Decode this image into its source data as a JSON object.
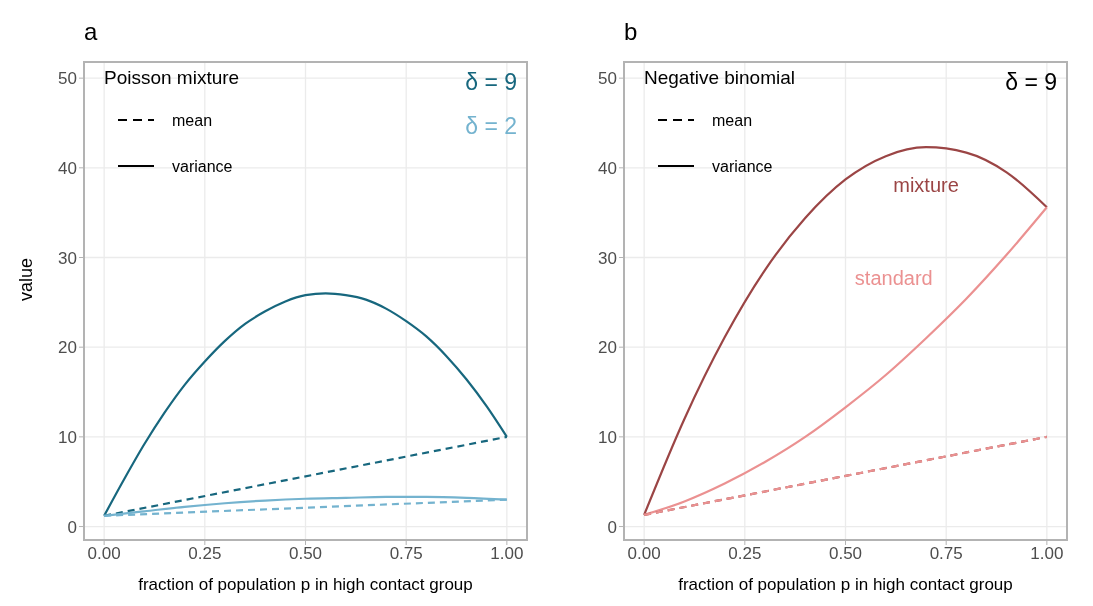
{
  "chart_data": [
    {
      "type": "line",
      "title": "a",
      "xlabel": "fraction of population p in high contact group",
      "ylabel": "value",
      "annotations": [
        "Poisson mixture",
        "mean",
        "variance"
      ],
      "xlim": [
        -0.05,
        1.05
      ],
      "ylim": [
        -1.5,
        51.8
      ],
      "xticks": [
        {
          "value": 0,
          "label": "0.00"
        },
        {
          "value": 0.25,
          "label": "0.25"
        },
        {
          "value": 0.5,
          "label": "0.50"
        },
        {
          "value": 0.75,
          "label": "0.75"
        },
        {
          "value": 1,
          "label": "1.00"
        }
      ],
      "yticks": [
        0,
        10,
        20,
        30,
        40,
        50
      ],
      "grid": true,
      "series": [
        {
          "name": "δ = 9",
          "color": "#17677e",
          "line_style": "solid",
          "x": [
            0,
            0.05,
            0.1,
            0.15,
            0.2,
            0.25,
            0.3,
            0.35,
            0.4,
            0.45,
            0.5,
            0.55,
            0.6,
            0.65,
            0.7,
            0.75,
            0.8,
            0.85,
            0.9,
            0.95,
            1
          ],
          "values": [
            1.2,
            5.3,
            9.2,
            12.7,
            15.8,
            18.4,
            20.7,
            22.6,
            24.0,
            25.1,
            25.8,
            26.0,
            25.8,
            25.3,
            24.3,
            22.9,
            21.2,
            19.0,
            16.4,
            13.4,
            10.0
          ]
        },
        {
          "color": "#17677e",
          "line_style": "dashed",
          "x": [
            0,
            1
          ],
          "values": [
            1.2,
            10.0
          ]
        },
        {
          "name": "δ = 2",
          "color": "#74b3cf",
          "line_style": "solid",
          "x": [
            0,
            0.1,
            0.2,
            0.3,
            0.4,
            0.5,
            0.6,
            0.7,
            0.8,
            0.9,
            1
          ],
          "values": [
            1.2,
            1.7,
            2.2,
            2.6,
            2.9,
            3.1,
            3.2,
            3.3,
            3.3,
            3.2,
            3.0
          ]
        },
        {
          "color": "#74b3cf",
          "line_style": "dashed",
          "x": [
            0,
            1
          ],
          "values": [
            1.2,
            3.0
          ]
        }
      ]
    },
    {
      "type": "line",
      "title": "b",
      "xlabel": "fraction of population p in high contact group",
      "annotations": [
        "Negative binomial",
        "mean",
        "variance",
        "δ = 9"
      ],
      "xlim": [
        -0.05,
        1.05
      ],
      "ylim": [
        -1.5,
        51.8
      ],
      "xticks": [
        {
          "value": 0,
          "label": "0.00"
        },
        {
          "value": 0.25,
          "label": "0.25"
        },
        {
          "value": 0.5,
          "label": "0.50"
        },
        {
          "value": 0.75,
          "label": "0.75"
        },
        {
          "value": 1,
          "label": "1.00"
        }
      ],
      "yticks": [
        0,
        10,
        20,
        30,
        40,
        50
      ],
      "grid": true,
      "series": [
        {
          "name": "mixture",
          "color": "#9b4545",
          "line_style": "solid",
          "x": [
            0,
            0.1,
            0.2,
            0.3,
            0.4,
            0.5,
            0.6,
            0.7,
            0.8,
            0.9,
            1
          ],
          "values": [
            1.3,
            12.0,
            21.1,
            28.6,
            34.4,
            38.7,
            41.3,
            42.3,
            41.7,
            39.5,
            35.6
          ]
        },
        {
          "name": "standard",
          "color": "#eb9191",
          "line_style": "solid",
          "x": [
            0,
            0.1,
            0.2,
            0.3,
            0.4,
            0.5,
            0.6,
            0.7,
            0.8,
            0.9,
            1
          ],
          "values": [
            1.3,
            2.8,
            4.8,
            7.2,
            10.0,
            13.3,
            16.9,
            21.0,
            25.4,
            30.3,
            35.6
          ]
        },
        {
          "color": "#9b4545",
          "line_style": "dashed",
          "x": [
            0,
            1
          ],
          "values": [
            1.3,
            10.0
          ]
        },
        {
          "color": "#eb9191",
          "line_style": "dashed",
          "x": [
            0,
            1
          ],
          "values": [
            1.3,
            10.0
          ]
        }
      ]
    }
  ]
}
